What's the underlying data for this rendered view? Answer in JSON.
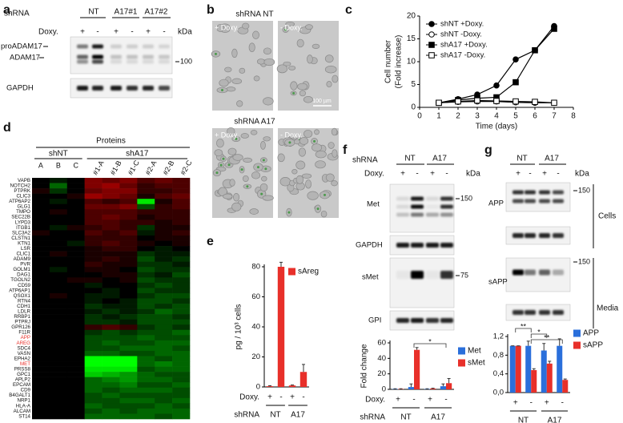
{
  "panel_labels": [
    "a",
    "b",
    "c",
    "d",
    "e",
    "f",
    "g"
  ],
  "blot_a": {
    "shrna_label": "shRNA",
    "groups": [
      "NT",
      "A17#1",
      "A17#2"
    ],
    "doxy_label": "Doxy.",
    "doxy": [
      "+",
      "-",
      "+",
      "-",
      "+",
      "-"
    ],
    "kda_label": "kDa",
    "bands": [
      "proADAM17",
      "ADAM17"
    ],
    "marker": 100,
    "loading": "GAPDH"
  },
  "micrographs_b": {
    "rows": [
      {
        "title": "shRNA NT",
        "panels": [
          "+ Doxy.",
          "- Doxy."
        ]
      },
      {
        "title": "shRNA A17",
        "panels": [
          "+ Doxy.",
          "- Doxy."
        ]
      }
    ],
    "scale_bar": "100 µm"
  },
  "blot_f": {
    "shrna_label": "shRNA",
    "groups": [
      "NT",
      "A17"
    ],
    "doxy_label": "Doxy.",
    "doxy": [
      "+",
      "-",
      "+",
      "-"
    ],
    "kda_label": "kDa",
    "blots": [
      "Met",
      "GAPDH",
      "sMet",
      "GPI"
    ],
    "markers": [
      150,
      75
    ]
  },
  "blot_g": {
    "groups": [
      "NT",
      "A17"
    ],
    "doxy": [
      "+",
      "-",
      "+",
      "-"
    ],
    "kda_label": "kDa",
    "blots": [
      "APP",
      "sAPP"
    ],
    "markers": [
      150,
      150
    ],
    "sections": [
      "Cells",
      "Media"
    ]
  },
  "chart_data": [
    {
      "type": "line",
      "xlabel": "Time (days)",
      "ylabel": [
        "Cell number",
        "(Fold increase)"
      ],
      "x": [
        1,
        2,
        3,
        4,
        5,
        6,
        7
      ],
      "xlim": [
        0,
        8
      ],
      "xticks": [
        0,
        1,
        2,
        3,
        4,
        5,
        6,
        7,
        8
      ],
      "ylim": [
        0,
        20
      ],
      "yticks": [
        0,
        5,
        10,
        15,
        20
      ],
      "series": [
        {
          "name": "shNT +Doxy.",
          "color": "#000000",
          "marker": "filled-circle",
          "values": [
            1,
            1.8,
            2.8,
            4.8,
            10.5,
            12.5,
            17.8
          ]
        },
        {
          "name": "shNT -Doxy.",
          "color": "#000000",
          "marker": "open-circle",
          "values": [
            1,
            1.2,
            1.3,
            1.3,
            1.1,
            1.0,
            1.0
          ]
        },
        {
          "name": "shA17 +Doxy.",
          "color": "#000000",
          "marker": "filled-square",
          "values": [
            1,
            1.6,
            2.0,
            2.2,
            5.5,
            12.5,
            17.2
          ]
        },
        {
          "name": "shA17 -Doxy.",
          "color": "#000000",
          "marker": "open-square",
          "values": [
            1,
            1.3,
            1.5,
            1.4,
            1.3,
            1.2,
            1.0
          ]
        }
      ]
    },
    {
      "type": "heatmap",
      "title": "Proteins",
      "groups": [
        "shNT",
        "shA17"
      ],
      "columns": [
        [
          "A",
          "B",
          "C"
        ],
        [
          "#1-A",
          "#1-B",
          "#1-C",
          "#2-A",
          "#2-B",
          "#2-C"
        ]
      ],
      "rows": [
        "VAPB",
        "NOTCH2",
        "PTPRK",
        "CLIC3",
        "ATP6AP2",
        "GLG1",
        "TMPO",
        "SEC22B",
        "LYPD3",
        "ITGB1",
        "SLC3A2",
        "CLSTN1",
        "KTN1",
        "LSR",
        "CLIC1",
        "ADAM9",
        "PVR",
        "GOLM1",
        "DAG1",
        "TGOLN2",
        "CD59",
        "ATP6AP1",
        "QSOX1",
        "RTN4",
        "CDH1",
        "LDLR",
        "RRBP1",
        "PTPRJ",
        "GPR126",
        "F11R",
        "APP",
        "AREG",
        "SDC4",
        "VASN",
        "EPHA2",
        "MET",
        "PRSS8",
        "GPC1",
        "APLP2",
        "EPCAM",
        "CD9",
        "B4GALT1",
        "NRP1",
        "HLA-A",
        "ALCAM",
        "ST14"
      ],
      "highlighted": [
        "APP",
        "AREG",
        "MET"
      ],
      "highlight_color": "#e8302a",
      "colors": [
        "#00ff00",
        "#000000",
        "#ff0000"
      ],
      "vlim": [
        -1,
        1
      ],
      "values": [
        [
          0,
          -0.1,
          0,
          0.5,
          0.4,
          0.5,
          0.3,
          0.4,
          0.3
        ],
        [
          0,
          -0.4,
          0,
          0.5,
          0.6,
          0.4,
          0.2,
          0.3,
          0.3
        ],
        [
          0.1,
          -0.2,
          0,
          0.4,
          0.5,
          0.5,
          0.2,
          0.2,
          0.3
        ],
        [
          0,
          0,
          0.1,
          0.6,
          0.5,
          0.4,
          0.1,
          0.3,
          0.4
        ],
        [
          0,
          -0.1,
          0,
          0.3,
          0.2,
          0.3,
          -0.9,
          0.1,
          0.3
        ],
        [
          0,
          0,
          0,
          0.4,
          0.4,
          0.5,
          -0.3,
          0.2,
          0.3
        ],
        [
          0,
          0.1,
          0,
          0.3,
          0.3,
          0.3,
          0.2,
          0.2,
          0.2
        ],
        [
          0,
          0,
          0,
          0.3,
          0.4,
          0.3,
          0.1,
          0.2,
          0.2
        ],
        [
          0,
          0,
          0,
          0.3,
          0.3,
          0.2,
          0.2,
          0.1,
          0.2
        ],
        [
          0,
          -0.1,
          0.1,
          0.2,
          0.3,
          0.2,
          -0.2,
          0.1,
          0.1
        ],
        [
          0.1,
          0,
          0,
          0.3,
          0.2,
          0.3,
          -0.1,
          0.1,
          0.2
        ],
        [
          0,
          0,
          0,
          0.2,
          0.2,
          0.2,
          0,
          0.1,
          0.1
        ],
        [
          0,
          0,
          -0.1,
          0.2,
          0.3,
          0.2,
          0.1,
          0,
          0.1
        ],
        [
          0,
          0,
          0,
          0.1,
          0.2,
          0.2,
          0,
          -0.1,
          0
        ],
        [
          0,
          0.1,
          0,
          0.1,
          0.1,
          0.1,
          -0.2,
          -0.1,
          -0.1
        ],
        [
          0,
          0,
          0,
          0.1,
          0.2,
          0.1,
          -0.3,
          -0.1,
          -0.2
        ],
        [
          0,
          0,
          0,
          0.2,
          0.1,
          0.1,
          -0.2,
          -0.2,
          -0.1
        ],
        [
          0,
          -0.1,
          0,
          0.1,
          0.1,
          0,
          -0.3,
          -0.2,
          -0.2
        ],
        [
          0,
          0,
          0,
          0,
          0.1,
          0.1,
          -0.2,
          -0.1,
          -0.3
        ],
        [
          0,
          0,
          0.1,
          0.1,
          0,
          0.1,
          -0.3,
          -0.2,
          -0.2
        ],
        [
          0,
          0,
          0,
          -0.1,
          0,
          0,
          -0.2,
          -0.3,
          -0.2
        ],
        [
          0,
          0,
          0,
          0,
          -0.1,
          0,
          -0.3,
          -0.2,
          -0.2
        ],
        [
          0,
          0.1,
          0,
          -0.1,
          -0.1,
          0,
          -0.2,
          -0.3,
          -0.3
        ],
        [
          0,
          0,
          0,
          -0.1,
          0,
          -0.1,
          -0.3,
          -0.3,
          -0.2
        ],
        [
          0,
          0,
          0,
          -0.2,
          -0.1,
          -0.1,
          -0.3,
          -0.2,
          -0.3
        ],
        [
          0,
          0,
          0,
          -0.1,
          -0.2,
          -0.1,
          -0.2,
          -0.4,
          -0.3
        ],
        [
          0,
          0,
          0,
          -0.2,
          -0.1,
          -0.2,
          -0.3,
          -0.3,
          -0.2
        ],
        [
          0,
          0,
          0,
          -0.2,
          -0.2,
          -0.1,
          -0.3,
          -0.3,
          -0.3
        ],
        [
          0,
          0,
          0,
          0.2,
          0.3,
          0.2,
          -0.2,
          -0.3,
          -0.2
        ],
        [
          0,
          0,
          0,
          -0.2,
          -0.3,
          -0.2,
          -0.3,
          -0.3,
          -0.4
        ],
        [
          0,
          0,
          0,
          -0.3,
          -0.3,
          -0.3,
          -0.4,
          -0.3,
          -0.3
        ],
        [
          0,
          0,
          0,
          -0.3,
          -0.4,
          -0.3,
          -0.3,
          -0.4,
          -0.4
        ],
        [
          0,
          0,
          0,
          -0.3,
          -0.3,
          -0.4,
          -0.4,
          -0.4,
          -0.3
        ],
        [
          0,
          0,
          0,
          -0.4,
          -0.4,
          -0.3,
          -0.3,
          -0.4,
          -0.4
        ],
        [
          0,
          0,
          0,
          -1,
          -1,
          -1,
          -0.4,
          -0.3,
          -0.4
        ],
        [
          0,
          0,
          0,
          -1,
          -1,
          -1,
          -0.4,
          -0.5,
          -0.4
        ],
        [
          0,
          0,
          0,
          -0.9,
          -0.9,
          -0.9,
          -0.3,
          -0.4,
          -0.4
        ],
        [
          0,
          0,
          0,
          -0.8,
          -0.7,
          -0.6,
          -0.4,
          -0.3,
          -0.3
        ],
        [
          0,
          0,
          0,
          -0.4,
          -0.5,
          -0.6,
          -0.4,
          -0.4,
          -0.3
        ],
        [
          0,
          0,
          0,
          -0.4,
          -0.4,
          -0.5,
          -0.3,
          -0.3,
          -0.4
        ],
        [
          0,
          0,
          0,
          -0.4,
          -0.3,
          -0.4,
          -0.4,
          -0.4,
          -0.3
        ],
        [
          0,
          0,
          0,
          -0.3,
          -0.4,
          -0.3,
          -0.3,
          -0.3,
          -0.3
        ],
        [
          0,
          0,
          0,
          -0.3,
          -0.3,
          -0.4,
          -0.4,
          -0.3,
          -0.4
        ],
        [
          0,
          0,
          0,
          -0.4,
          -0.3,
          -0.3,
          -0.3,
          -0.4,
          -0.3
        ],
        [
          0,
          0,
          0,
          -0.3,
          -0.4,
          -0.3,
          -0.4,
          -0.4,
          -0.4
        ],
        [
          0,
          0,
          0,
          -0.4,
          -0.4,
          -0.4,
          -0.4,
          -0.3,
          -0.4
        ]
      ]
    },
    {
      "type": "bar",
      "ylabel": "pg / 10³ cells",
      "ylim": [
        0,
        80
      ],
      "yticks": [
        0,
        20,
        40,
        60,
        80
      ],
      "category_label": "Doxy.",
      "categories": [
        "+",
        "-",
        "+",
        "-"
      ],
      "group_label": "shRNA",
      "groups": [
        "NT",
        "A17"
      ],
      "series": [
        {
          "name": "sAreg",
          "color": "#e8302a",
          "values": [
            0.5,
            80,
            1,
            10
          ],
          "errors": [
            0.3,
            3,
            0.3,
            5
          ]
        }
      ]
    },
    {
      "type": "bar",
      "ylabel": "Fold change",
      "ylim": [
        0,
        60
      ],
      "yticks": [
        0,
        20,
        40,
        60
      ],
      "category_label": "Doxy.",
      "categories": [
        "+",
        "-",
        "+",
        "-"
      ],
      "group_label": "shRNA",
      "groups": [
        "NT",
        "A17"
      ],
      "series": [
        {
          "name": "Met",
          "color": "#2a6fdb",
          "values": [
            0.5,
            3,
            0.5,
            4
          ],
          "errors": [
            0.3,
            4,
            0.3,
            3
          ]
        },
        {
          "name": "sMet",
          "color": "#e8302a",
          "values": [
            0.5,
            51,
            1,
            8
          ],
          "errors": [
            0.3,
            3,
            0.5,
            6
          ]
        }
      ],
      "annotations": [
        "*"
      ]
    },
    {
      "type": "bar",
      "ylim": [
        0,
        1.2
      ],
      "yticks": [
        {
          "value": 0,
          "label": "0,0"
        },
        {
          "value": 0.4,
          "label": "0,4"
        },
        {
          "value": 0.8,
          "label": "0,8"
        },
        {
          "value": 1.2,
          "label": "1,2"
        }
      ],
      "categories": [
        "+",
        "-",
        "+",
        "-"
      ],
      "groups": [
        "NT",
        "A17"
      ],
      "series": [
        {
          "name": "APP",
          "color": "#2a6fdb",
          "values": [
            1,
            1,
            0.9,
            1.0
          ],
          "errors": [
            0,
            0.1,
            0.15,
            0.15
          ]
        },
        {
          "name": "sAPP",
          "color": "#e8302a",
          "values": [
            1,
            0.48,
            0.62,
            0.27
          ],
          "errors": [
            0,
            0.03,
            0.05,
            0.02
          ]
        }
      ],
      "annotations": [
        "**",
        "*",
        "**"
      ]
    }
  ]
}
